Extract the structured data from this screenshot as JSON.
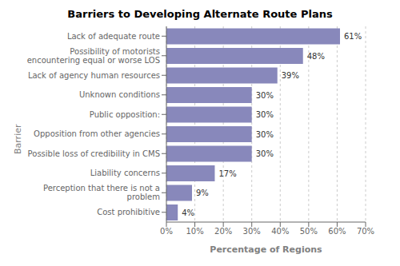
{
  "chart_data": {
    "type": "bar",
    "title": "Barriers to Developing Alternate Route Plans",
    "orientation": "horizontal",
    "categories": [
      "Cost prohibitive",
      "Perception that there is not a\nproblem",
      "Liability concerns",
      "Possible loss of credibility in CMS",
      "Opposition from other agencies",
      "Public opposition:",
      "Unknown conditions",
      "Lack of agency human resources",
      "Possibility of motorists\nencountering equal or worse LOS",
      "Lack of adequate route"
    ],
    "values": [
      4,
      9,
      17,
      30,
      30,
      30,
      30,
      39,
      48,
      61
    ],
    "value_labels": [
      "4%",
      "9%",
      "17%",
      "30%",
      "30%",
      "30%",
      "30%",
      "39%",
      "48%",
      "61%"
    ],
    "data_labels": true,
    "color": "#8888bb",
    "xlabel": "Percentage of Regions",
    "ylabel": "Barrier",
    "xlim": [
      0,
      70
    ],
    "xticks": [
      {
        "value": 0,
        "label": "0%"
      },
      {
        "value": 10,
        "label": "10%"
      },
      {
        "value": 20,
        "label": "20%"
      },
      {
        "value": 30,
        "label": "30%"
      },
      {
        "value": 40,
        "label": "40%"
      },
      {
        "value": 50,
        "label": "50%"
      },
      {
        "value": 60,
        "label": "60%"
      },
      {
        "value": 70,
        "label": "70%"
      }
    ],
    "grid": true
  }
}
